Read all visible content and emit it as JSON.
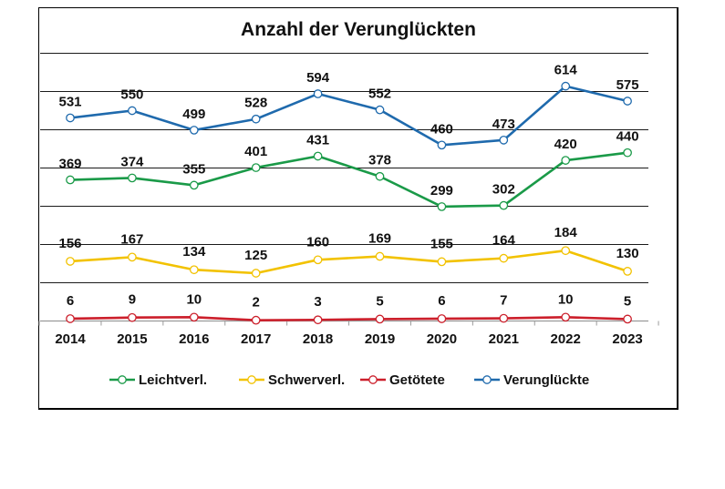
{
  "chart_data": {
    "type": "line",
    "title": "Anzahl der Verunglückten",
    "xlabel": "",
    "ylabel": "",
    "categories": [
      "2014",
      "2015",
      "2016",
      "2017",
      "2018",
      "2019",
      "2020",
      "2021",
      "2022",
      "2023"
    ],
    "ylim": [
      0,
      700
    ],
    "grid": true,
    "legend_position": "bottom",
    "series": [
      {
        "name": "Leichtverl.",
        "color": "#1a9a48",
        "values": [
          369,
          374,
          355,
          401,
          431,
          378,
          299,
          302,
          420,
          440
        ]
      },
      {
        "name": "Schwerverl.",
        "color": "#f2c200",
        "values": [
          156,
          167,
          134,
          125,
          160,
          169,
          155,
          164,
          184,
          130
        ]
      },
      {
        "name": "Getötete",
        "color": "#cc1f2b",
        "values": [
          6,
          9,
          10,
          2,
          3,
          5,
          6,
          7,
          10,
          5
        ]
      },
      {
        "name": "Verunglückte",
        "color": "#1f6aad",
        "values": [
          531,
          550,
          499,
          528,
          594,
          552,
          460,
          473,
          614,
          575
        ]
      }
    ]
  }
}
